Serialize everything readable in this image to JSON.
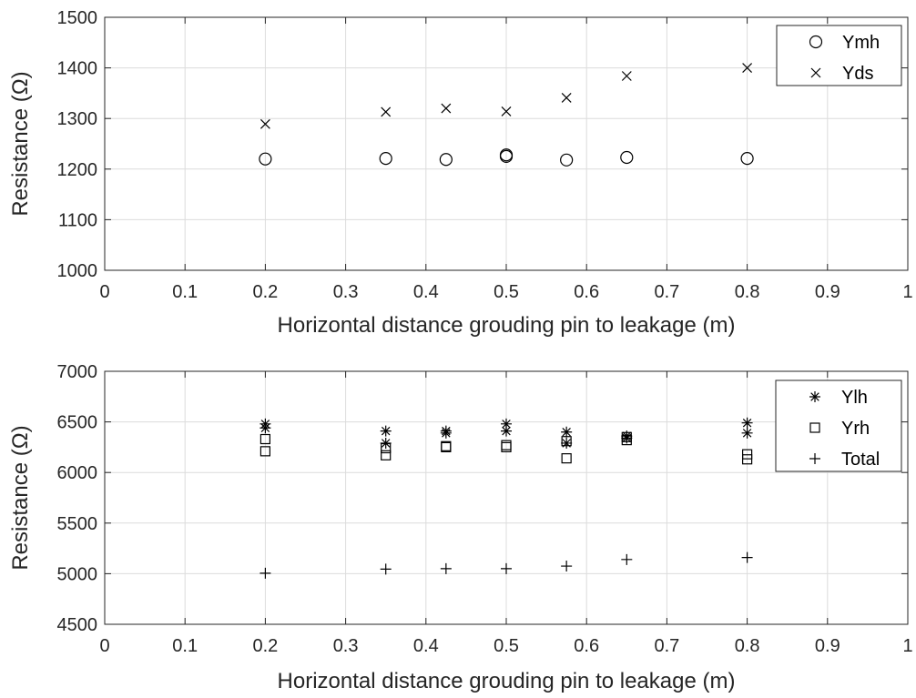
{
  "chart_data": [
    {
      "type": "scatter",
      "xlabel": "Horizontal distance grouding pin to leakage (m)",
      "ylabel": "Resistance (Ω)",
      "xlim": [
        0,
        1
      ],
      "ylim": [
        1000,
        1500
      ],
      "xticks": [
        0,
        0.1,
        0.2,
        0.3,
        0.4,
        0.5,
        0.6,
        0.7,
        0.8,
        0.9,
        1
      ],
      "xtick_labels": [
        "0",
        "0.1",
        "0.2",
        "0.3",
        "0.4",
        "0.5",
        "0.6",
        "0.7",
        "0.8",
        "0.9",
        "1"
      ],
      "yticks": [
        1000,
        1100,
        1200,
        1300,
        1400,
        1500
      ],
      "ytick_labels": [
        "1000",
        "1100",
        "1200",
        "1300",
        "1400",
        "1500"
      ],
      "grid": true,
      "legend_position": "top-right",
      "series": [
        {
          "name": "Ymh",
          "marker": "circle",
          "x": [
            0.2,
            0.35,
            0.425,
            0.5,
            0.5,
            0.575,
            0.65,
            0.8
          ],
          "y": [
            1220,
            1221,
            1219,
            1228,
            1225,
            1218,
            1223,
            1221
          ]
        },
        {
          "name": "Yds",
          "marker": "x",
          "x": [
            0.2,
            0.35,
            0.425,
            0.5,
            0.575,
            0.65,
            0.8
          ],
          "y": [
            1289,
            1313,
            1320,
            1314,
            1341,
            1384,
            1400
          ]
        }
      ]
    },
    {
      "type": "scatter",
      "xlabel": "Horizontal distance grouding pin to leakage (m)",
      "ylabel": "Resistance (Ω)",
      "xlim": [
        0,
        1
      ],
      "ylim": [
        4500,
        7000
      ],
      "xticks": [
        0,
        0.1,
        0.2,
        0.3,
        0.4,
        0.5,
        0.6,
        0.7,
        0.8,
        0.9,
        1
      ],
      "xtick_labels": [
        "0",
        "0.1",
        "0.2",
        "0.3",
        "0.4",
        "0.5",
        "0.6",
        "0.7",
        "0.8",
        "0.9",
        "1"
      ],
      "yticks": [
        4500,
        5000,
        5500,
        6000,
        6500,
        7000
      ],
      "ytick_labels": [
        "4500",
        "5000",
        "5500",
        "6000",
        "6500",
        "7000"
      ],
      "grid": true,
      "legend_position": "top-right",
      "series": [
        {
          "name": "Ylh",
          "marker": "asterisk",
          "x": [
            0.2,
            0.2,
            0.35,
            0.35,
            0.425,
            0.425,
            0.5,
            0.5,
            0.575,
            0.575,
            0.65,
            0.65,
            0.8,
            0.8
          ],
          "y": [
            6480,
            6440,
            6410,
            6290,
            6410,
            6390,
            6480,
            6410,
            6400,
            6290,
            6360,
            6340,
            6490,
            6390
          ]
        },
        {
          "name": "Yrh",
          "marker": "square",
          "x": [
            0.2,
            0.2,
            0.35,
            0.35,
            0.425,
            0.425,
            0.5,
            0.5,
            0.575,
            0.575,
            0.65,
            0.65,
            0.8,
            0.8
          ],
          "y": [
            6330,
            6210,
            6240,
            6170,
            6260,
            6250,
            6270,
            6250,
            6310,
            6140,
            6350,
            6320,
            6180,
            6130
          ]
        },
        {
          "name": "Total",
          "marker": "plus",
          "x": [
            0.2,
            0.35,
            0.425,
            0.5,
            0.575,
            0.65,
            0.8
          ],
          "y": [
            5005,
            5045,
            5050,
            5050,
            5075,
            5140,
            5160
          ]
        }
      ]
    }
  ]
}
